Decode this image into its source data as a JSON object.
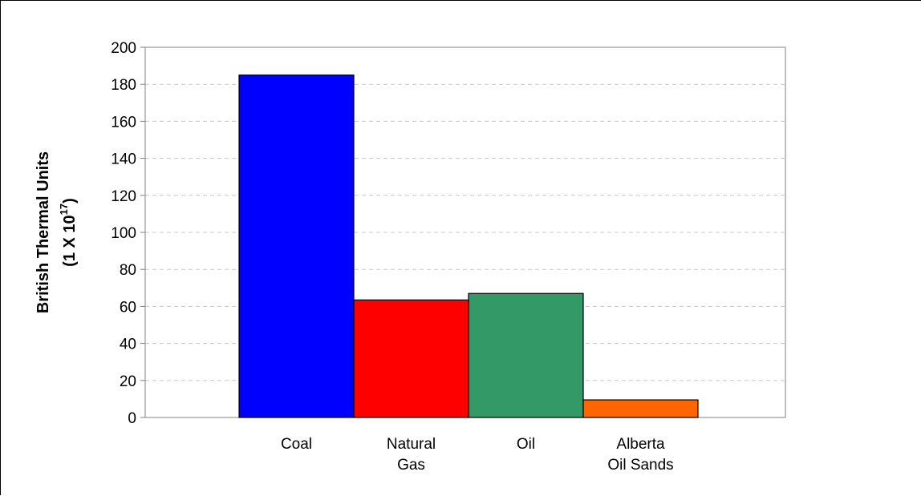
{
  "chart_data": {
    "type": "bar",
    "categories": [
      [
        "Coal"
      ],
      [
        "Natural",
        "Gas"
      ],
      [
        "Oil"
      ],
      [
        "Alberta",
        "Oil Sands"
      ]
    ],
    "values": [
      185,
      63.5,
      67,
      9.5
    ],
    "colors": [
      "#0000ff",
      "#ff0000",
      "#339966",
      "#ff6600"
    ],
    "ylabel": {
      "line1": "British Thermal Units",
      "line2_prefix": "(1 X 10",
      "line2_sup": "17",
      "line2_suffix": ")"
    },
    "ylim": [
      0,
      200
    ],
    "yticks": [
      0,
      20,
      40,
      60,
      80,
      100,
      120,
      140,
      160,
      180,
      200
    ],
    "grid": true
  }
}
